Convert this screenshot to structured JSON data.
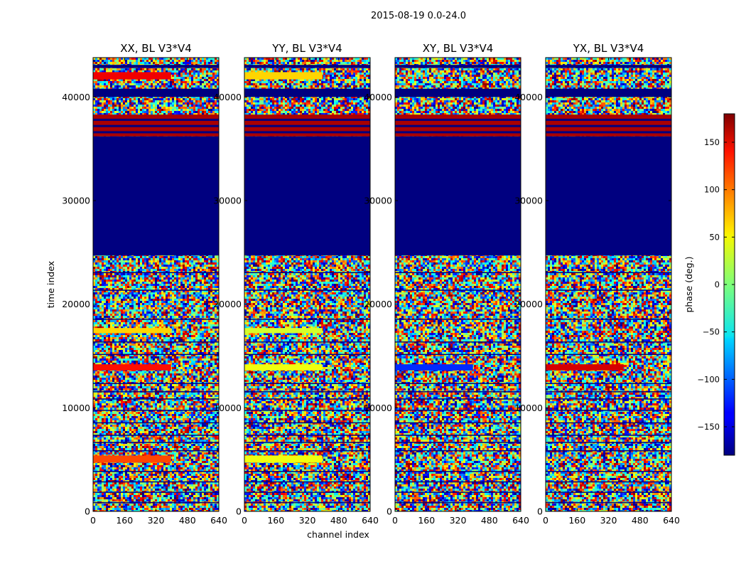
{
  "figure": {
    "suptitle": "2015-08-19 0.0-24.0",
    "xlabel": "channel index",
    "ylabel": "time index"
  },
  "colorbar": {
    "label": "phase (deg.)",
    "range": [
      -180,
      180
    ],
    "ticks": [
      150,
      100,
      50,
      0,
      -50,
      -100,
      -150
    ],
    "tick_labels": [
      "150",
      "100",
      "50",
      "0",
      "−50",
      "−100",
      "−150"
    ],
    "colormap": "jet"
  },
  "chart_data": [
    {
      "type": "heatmap",
      "title": "XX, BL V3*V4",
      "xlabel": "channel index",
      "ylabel": "time index",
      "xlim": [
        0,
        640
      ],
      "ylim": [
        0,
        43800
      ],
      "xticks": [
        "0",
        "160",
        "320",
        "480",
        "640"
      ],
      "yticks": [
        "0",
        "10000",
        "20000",
        "30000",
        "40000"
      ],
      "value_range_deg": [
        -180,
        180
      ],
      "solid_bands": [
        {
          "t0": 24700,
          "t1": 36200,
          "phase": -180
        },
        {
          "t0": 36200,
          "t1": 38300,
          "phase": 165
        },
        {
          "t0": 40000,
          "t1": 40800,
          "phase": -180
        },
        {
          "t0": 42800,
          "t1": 43100,
          "phase": -180
        }
      ],
      "coherent_bands": [
        {
          "t0": 41700,
          "t1": 42400,
          "phase": 140
        },
        {
          "t0": 17200,
          "t1": 17700,
          "phase": 60
        },
        {
          "t0": 13600,
          "t1": 14200,
          "phase": 130
        },
        {
          "t0": 4700,
          "t1": 5400,
          "phase": 110
        }
      ]
    },
    {
      "type": "heatmap",
      "title": "YY, BL V3*V4",
      "xlabel": "channel index",
      "ylabel": "time index",
      "xlim": [
        0,
        640
      ],
      "ylim": [
        0,
        43800
      ],
      "xticks": [
        "0",
        "160",
        "320",
        "480",
        "640"
      ],
      "yticks": [
        "0",
        "10000",
        "20000",
        "30000",
        "40000"
      ],
      "value_range_deg": [
        -180,
        180
      ],
      "solid_bands": [
        {
          "t0": 24700,
          "t1": 36200,
          "phase": -180
        },
        {
          "t0": 36200,
          "t1": 38300,
          "phase": 165
        },
        {
          "t0": 40000,
          "t1": 40800,
          "phase": -180
        },
        {
          "t0": 42800,
          "t1": 43100,
          "phase": -180
        }
      ],
      "coherent_bands": [
        {
          "t0": 41700,
          "t1": 42400,
          "phase": 60
        },
        {
          "t0": 17200,
          "t1": 17700,
          "phase": 30
        },
        {
          "t0": 13600,
          "t1": 14200,
          "phase": 40
        },
        {
          "t0": 4700,
          "t1": 5400,
          "phase": 40
        }
      ]
    },
    {
      "type": "heatmap",
      "title": "XY, BL V3*V4",
      "xlabel": "channel index",
      "ylabel": "time index",
      "xlim": [
        0,
        640
      ],
      "ylim": [
        0,
        43800
      ],
      "xticks": [
        "0",
        "160",
        "320",
        "480",
        "640"
      ],
      "yticks": [
        "0",
        "10000",
        "20000",
        "30000",
        "40000"
      ],
      "value_range_deg": [
        -180,
        180
      ],
      "solid_bands": [
        {
          "t0": 24700,
          "t1": 36200,
          "phase": -180
        },
        {
          "t0": 36200,
          "t1": 38300,
          "phase": 165
        },
        {
          "t0": 40000,
          "t1": 40800,
          "phase": -180
        },
        {
          "t0": 42800,
          "t1": 43100,
          "phase": -180
        }
      ],
      "coherent_bands": [
        {
          "t0": 13600,
          "t1": 14200,
          "phase": -120
        }
      ]
    },
    {
      "type": "heatmap",
      "title": "YX, BL V3*V4",
      "xlabel": "channel index",
      "ylabel": "time index",
      "xlim": [
        0,
        640
      ],
      "ylim": [
        0,
        43800
      ],
      "xticks": [
        "0",
        "160",
        "320",
        "480",
        "640"
      ],
      "yticks": [
        "0",
        "10000",
        "20000",
        "30000",
        "40000"
      ],
      "value_range_deg": [
        -180,
        180
      ],
      "solid_bands": [
        {
          "t0": 24700,
          "t1": 36200,
          "phase": -180
        },
        {
          "t0": 36200,
          "t1": 38300,
          "phase": 165
        },
        {
          "t0": 40000,
          "t1": 40800,
          "phase": -180
        },
        {
          "t0": 42800,
          "t1": 43100,
          "phase": -180
        }
      ],
      "coherent_bands": [
        {
          "t0": 13600,
          "t1": 14200,
          "phase": 150
        }
      ]
    }
  ]
}
